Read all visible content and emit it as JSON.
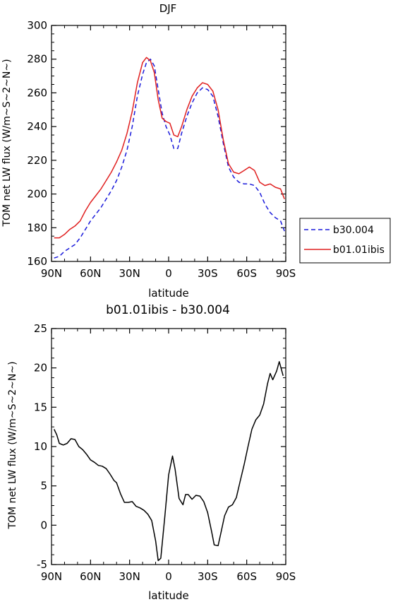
{
  "chart_data": [
    {
      "type": "line",
      "title": "DJF",
      "xlabel": "latitude",
      "ylabel": "TOM net LW flux (W/m~S~2~N~)",
      "xlim": [
        90,
        -90
      ],
      "ylim": [
        160,
        300
      ],
      "x_tick_values": [
        90,
        60,
        30,
        0,
        -30,
        -60,
        -90
      ],
      "x_tick_labels": [
        "90N",
        "60N",
        "30N",
        "0",
        "30S",
        "60S",
        "90S"
      ],
      "y_ticks": [
        160,
        180,
        200,
        220,
        240,
        260,
        280,
        300
      ],
      "legend_position": "right",
      "series": [
        {
          "name": "b30.004",
          "color": "#1a1adb",
          "dash": "dashed",
          "x": [
            88,
            84,
            80,
            76,
            72,
            68,
            64,
            60,
            56,
            52,
            48,
            44,
            40,
            36,
            32,
            28,
            24,
            20,
            17,
            14,
            11,
            8,
            5,
            2,
            -1,
            -4,
            -7,
            -10,
            -14,
            -18,
            -22,
            -26,
            -30,
            -34,
            -38,
            -42,
            -46,
            -50,
            -54,
            -58,
            -62,
            -66,
            -70,
            -74,
            -78,
            -82,
            -86,
            -89
          ],
          "values": [
            162,
            163,
            166,
            168,
            170,
            174,
            179,
            184,
            188,
            192,
            197,
            202,
            208,
            216,
            226,
            240,
            258,
            271,
            278,
            280,
            276,
            262,
            248,
            240,
            235,
            227,
            227,
            236,
            246,
            254,
            260,
            263,
            262,
            258,
            246,
            230,
            216,
            210,
            207,
            206,
            206,
            205,
            201,
            194,
            189,
            186,
            184,
            178
          ]
        },
        {
          "name": "b01.01ibis",
          "color": "#e02020",
          "dash": "solid",
          "x": [
            88,
            84,
            80,
            76,
            72,
            68,
            64,
            60,
            56,
            52,
            48,
            44,
            40,
            36,
            32,
            28,
            24,
            20,
            17,
            14,
            11,
            8,
            5,
            2,
            -1,
            -4,
            -7,
            -10,
            -14,
            -18,
            -22,
            -26,
            -30,
            -34,
            -38,
            -42,
            -46,
            -50,
            -54,
            -58,
            -62,
            -66,
            -70,
            -74,
            -78,
            -82,
            -86,
            -89
          ],
          "values": [
            174,
            174,
            176,
            179,
            181,
            184,
            190,
            195,
            199,
            203,
            208,
            213,
            219,
            226,
            236,
            249,
            266,
            278,
            281,
            279,
            272,
            256,
            245,
            243,
            242,
            235,
            234,
            240,
            250,
            258,
            263,
            266,
            265,
            261,
            250,
            232,
            218,
            213,
            212,
            214,
            216,
            214,
            207,
            205,
            206,
            204,
            203,
            197
          ]
        }
      ]
    },
    {
      "type": "line",
      "title": "b01.01ibis - b30.004",
      "xlabel": "latitude",
      "ylabel": "TOM net LW flux (W/m~S~2~N~)",
      "xlim": [
        90,
        -90
      ],
      "ylim": [
        -5,
        25
      ],
      "x_tick_values": [
        90,
        60,
        30,
        0,
        -30,
        -60,
        -90
      ],
      "x_tick_labels": [
        "90N",
        "60N",
        "30N",
        "0",
        "30S",
        "60S",
        "90S"
      ],
      "y_ticks": [
        -5,
        0,
        5,
        10,
        15,
        20,
        25
      ],
      "series": [
        {
          "color": "#000000",
          "dash": "solid",
          "x": [
            88,
            86,
            84,
            81,
            78,
            75,
            72,
            69,
            66,
            63,
            60,
            57,
            54,
            51,
            48,
            45,
            42,
            40,
            37,
            34,
            31,
            28,
            25,
            22,
            19,
            16,
            13,
            10,
            8,
            6,
            3,
            0,
            -3,
            -5,
            -8,
            -11,
            -13,
            -15,
            -18,
            -21,
            -24,
            -27,
            -30,
            -33,
            -35,
            -38,
            -40,
            -43,
            -46,
            -49,
            -52,
            -55,
            -58,
            -61,
            -64,
            -67,
            -70,
            -73,
            -76,
            -78,
            -80,
            -83,
            -85,
            -88
          ],
          "values": [
            12.2,
            11.5,
            10.4,
            10.2,
            10.4,
            11.0,
            10.9,
            10.0,
            9.6,
            9.0,
            8.3,
            8.0,
            7.6,
            7.5,
            7.2,
            6.5,
            5.7,
            5.4,
            4.0,
            2.9,
            2.9,
            3.0,
            2.4,
            2.2,
            1.9,
            1.4,
            0.6,
            -2.0,
            -4.5,
            -4.2,
            1.0,
            6.4,
            8.8,
            7.1,
            3.4,
            2.6,
            3.9,
            3.9,
            3.3,
            3.8,
            3.7,
            3.0,
            1.6,
            -0.8,
            -2.5,
            -2.6,
            -1.1,
            1.2,
            2.3,
            2.6,
            3.5,
            5.6,
            7.7,
            10.0,
            12.2,
            13.4,
            14.0,
            15.4,
            18.0,
            19.3,
            18.5,
            19.6,
            20.8,
            19.0
          ]
        }
      ]
    }
  ]
}
